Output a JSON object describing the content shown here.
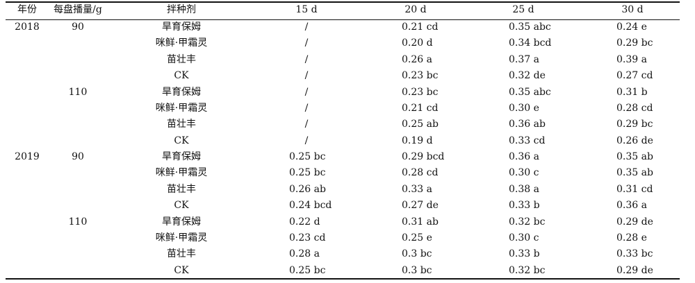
{
  "table": {
    "headers": {
      "year": "年份",
      "seeding": "每盘播量/g",
      "agent": "拌种剂",
      "d15": "15 d",
      "d20": "20 d",
      "d25": "25 d",
      "d30": "30 d"
    },
    "rows": [
      {
        "year": "2018",
        "seeding": "90",
        "agent": "旱育保姆",
        "d15": "/",
        "d20": "0.21 cd",
        "d25": "0.35 abc",
        "d30": "0.24 e"
      },
      {
        "year": "",
        "seeding": "",
        "agent": "咪鲜·甲霜灵",
        "d15": "/",
        "d20": "0.20 d",
        "d25": "0.34 bcd",
        "d30": "0.29 bc"
      },
      {
        "year": "",
        "seeding": "",
        "agent": "苗壮丰",
        "d15": "/",
        "d20": "0.26 a",
        "d25": "0.37 a",
        "d30": "0.39 a"
      },
      {
        "year": "",
        "seeding": "",
        "agent": "CK",
        "d15": "/",
        "d20": "0.23 bc",
        "d25": "0.32 de",
        "d30": "0.27 cd"
      },
      {
        "year": "",
        "seeding": "110",
        "agent": "旱育保姆",
        "d15": "/",
        "d20": "0.23 bc",
        "d25": "0.35 abc",
        "d30": "0.31 b"
      },
      {
        "year": "",
        "seeding": "",
        "agent": "咪鲜·甲霜灵",
        "d15": "/",
        "d20": "0.21 cd",
        "d25": "0.30 e",
        "d30": "0.28 cd"
      },
      {
        "year": "",
        "seeding": "",
        "agent": "苗壮丰",
        "d15": "/",
        "d20": "0.25 ab",
        "d25": "0.36 ab",
        "d30": "0.29 bc"
      },
      {
        "year": "",
        "seeding": "",
        "agent": "CK",
        "d15": "/",
        "d20": "0.19 d",
        "d25": "0.33 cd",
        "d30": "0.26 de"
      },
      {
        "year": "2019",
        "seeding": "90",
        "agent": "旱育保姆",
        "d15": "0.25 bc",
        "d20": "0.29 bcd",
        "d25": "0.36 a",
        "d30": "0.35 ab"
      },
      {
        "year": "",
        "seeding": "",
        "agent": "咪鲜·甲霜灵",
        "d15": "0.25 bc",
        "d20": "0.28 cd",
        "d25": "0.30 c",
        "d30": "0.35 ab"
      },
      {
        "year": "",
        "seeding": "",
        "agent": "苗壮丰",
        "d15": "0.26 ab",
        "d20": "0.33 a",
        "d25": "0.38 a",
        "d30": "0.31 cd"
      },
      {
        "year": "",
        "seeding": "",
        "agent": "CK",
        "d15": "0.24 bcd",
        "d20": "0.27 de",
        "d25": "0.33 b",
        "d30": "0.36 a"
      },
      {
        "year": "",
        "seeding": "110",
        "agent": "旱育保姆",
        "d15": "0.22 d",
        "d20": "0.31 ab",
        "d25": "0.32 bc",
        "d30": "0.29 de"
      },
      {
        "year": "",
        "seeding": "",
        "agent": "咪鲜·甲霜灵",
        "d15": "0.23 cd",
        "d20": "0.25 e",
        "d25": "0.30 c",
        "d30": "0.28 e"
      },
      {
        "year": "",
        "seeding": "",
        "agent": "苗壮丰",
        "d15": "0.28 a",
        "d20": "0.3 bc",
        "d25": "0.33 b",
        "d30": "0.33 bc"
      },
      {
        "year": "",
        "seeding": "",
        "agent": "CK",
        "d15": "0.25 bc",
        "d20": "0.3 bc",
        "d25": "0.32 bc",
        "d30": "0.29 de"
      }
    ]
  }
}
